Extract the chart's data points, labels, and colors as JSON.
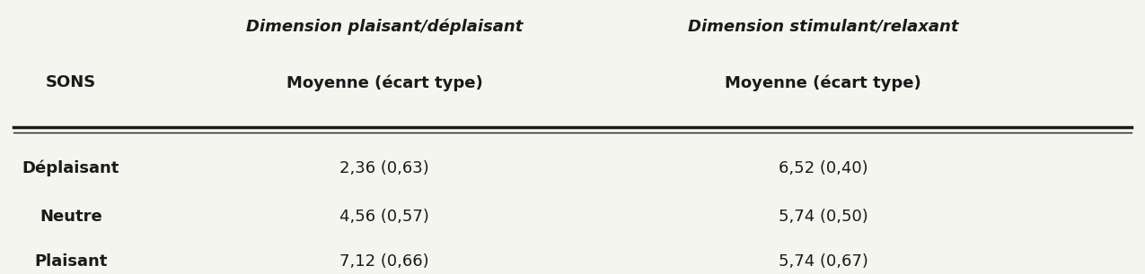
{
  "col_headers_top": [
    "Dimension plaisant/déplaisant",
    "Dimension stimulant/relaxant"
  ],
  "col_headers_sub": [
    "Moyenne (écart type)",
    "Moyenne (écart type)"
  ],
  "row_header": "SONS",
  "rows": [
    {
      "label": "Déplaisant",
      "val1": "2,36 (0,63)",
      "val2": "6,52 (0,40)"
    },
    {
      "label": "Neutre",
      "val1": "4,56 (0,57)",
      "val2": "5,74 (0,50)"
    },
    {
      "label": "Plaisant",
      "val1": "7,12 (0,66)",
      "val2": "5,74 (0,67)"
    }
  ],
  "bg_color": "#f5f5f0",
  "line_color": "#1a1a1a",
  "text_color": "#1a1a1a"
}
